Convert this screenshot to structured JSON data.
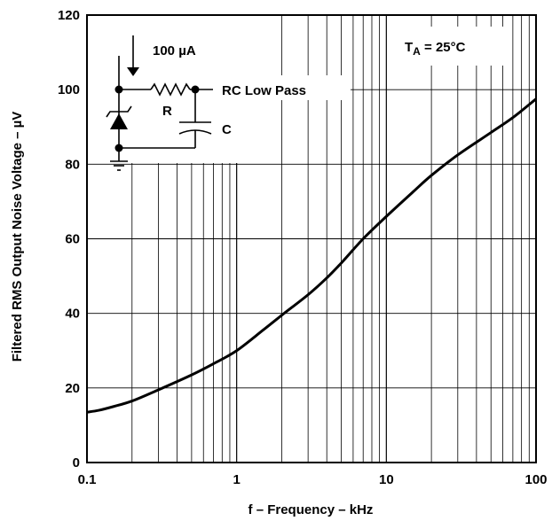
{
  "chart_data": {
    "type": "line",
    "title": "",
    "xlabel": "f – Frequency – kHz",
    "ylabel": "Filtered RMS Output Noise Voltage – µV",
    "x_scale": "log",
    "xlim": [
      0.1,
      100
    ],
    "ylim": [
      0,
      120
    ],
    "grid": true,
    "x_ticks": [
      {
        "value": 0.1,
        "label": "0.1"
      },
      {
        "value": 1,
        "label": "1"
      },
      {
        "value": 10,
        "label": "10"
      },
      {
        "value": 100,
        "label": "100"
      }
    ],
    "y_ticks": [
      {
        "value": 0,
        "label": "0"
      },
      {
        "value": 20,
        "label": "20"
      },
      {
        "value": 40,
        "label": "40"
      },
      {
        "value": 60,
        "label": "60"
      },
      {
        "value": 80,
        "label": "80"
      },
      {
        "value": 100,
        "label": "100"
      },
      {
        "value": 120,
        "label": "120"
      }
    ],
    "series": [
      {
        "x": [
          0.1,
          0.12,
          0.15,
          0.2,
          0.3,
          0.5,
          0.7,
          1,
          1.5,
          2,
          3,
          4,
          5,
          7,
          10,
          15,
          20,
          30,
          50,
          70,
          100
        ],
        "y": [
          13.5,
          14,
          15,
          16.5,
          19.5,
          23.5,
          26.5,
          30,
          35.5,
          39.5,
          45,
          49.5,
          53.5,
          60,
          66,
          72.5,
          77,
          82.5,
          88.5,
          92.5,
          97.5
        ]
      }
    ],
    "annotations": {
      "condition": {
        "base": "T",
        "sub": "A",
        "rest": " = 25°C"
      },
      "current": "100 µA",
      "filter": "RC Low Pass",
      "resistor": "R",
      "capacitor": "C"
    }
  }
}
